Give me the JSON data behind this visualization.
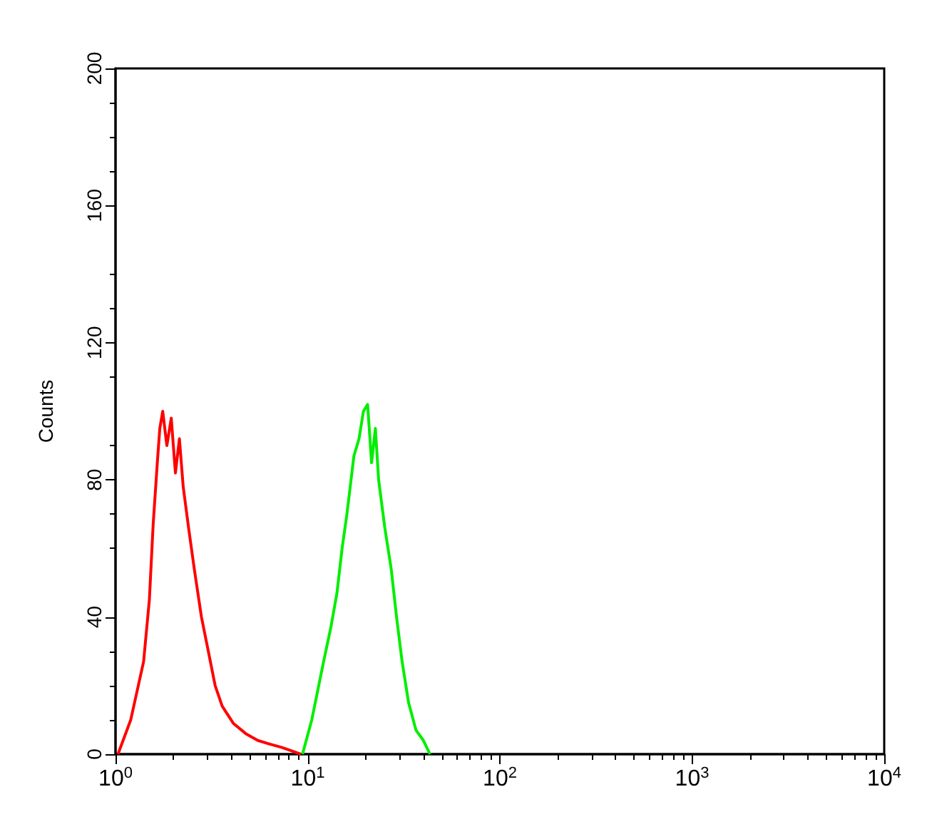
{
  "chart_data": {
    "type": "line",
    "ylabel": "Counts",
    "log": "x",
    "grid": false,
    "marker": "none",
    "line_style": "solid",
    "xlim": [
      1,
      10000
    ],
    "xticks": [
      {
        "value": 1,
        "label": "10$^{0}$"
      },
      {
        "value": 10,
        "label": "10$^{1}$"
      },
      {
        "value": 100,
        "label": "10$^{2}$"
      },
      {
        "value": 1000,
        "label": "10$^{3}$"
      },
      {
        "value": 10000,
        "label": "10$^{4}$"
      }
    ],
    "ylim": [
      0,
      200
    ],
    "yticks": [
      0,
      40,
      80,
      120,
      160,
      200
    ],
    "series": [
      {
        "color": "#ff0000",
        "x": [
          1.03,
          1.2,
          1.4,
          1.5,
          1.57,
          1.65,
          1.7,
          1.76,
          1.85,
          1.95,
          2.05,
          2.15,
          2.25,
          2.4,
          2.57,
          2.8,
          3.04,
          3.3,
          3.59,
          4.1,
          4.76,
          5.5,
          6.3,
          7.3,
          8.2,
          9.2
        ],
        "values": [
          0,
          10,
          27,
          45,
          67,
          85,
          95,
          100,
          90,
          98,
          82,
          92,
          78,
          66,
          54,
          40,
          30,
          20,
          14,
          9,
          6,
          4,
          3,
          2,
          1,
          0
        ]
      },
      {
        "color": "#00ee00",
        "x": [
          9.4,
          10.5,
          12.1,
          13.2,
          14.2,
          15.1,
          16,
          17.4,
          18.5,
          19.5,
          20.5,
          21.5,
          22.5,
          23.4,
          25.2,
          27.2,
          29,
          31,
          33.5,
          36.6,
          40,
          43.3
        ],
        "values": [
          0,
          10,
          27,
          37,
          47,
          60,
          70,
          87,
          92,
          100,
          102,
          85,
          95,
          80,
          66,
          54,
          40,
          27,
          15,
          7,
          4,
          0
        ]
      }
    ]
  }
}
